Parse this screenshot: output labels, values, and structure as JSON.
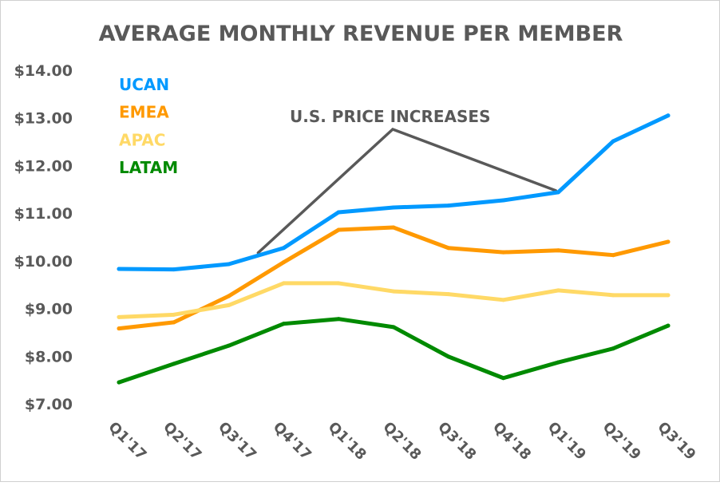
{
  "chart_data": {
    "type": "line",
    "title": "AVERAGE MONTHLY REVENUE PER MEMBER",
    "xlabel": "",
    "ylabel": "",
    "categories": [
      "Q1'17",
      "Q2'17",
      "Q3'17",
      "Q4'17",
      "Q1'18",
      "Q2'18",
      "Q3'18",
      "Q4'18",
      "Q1'19",
      "Q2'19",
      "Q3'19"
    ],
    "ylim": [
      7,
      14
    ],
    "yticks": [
      "$7.00",
      "$8.00",
      "$9.00",
      "$10.00",
      "$11.00",
      "$12.00",
      "$13.00",
      "$14.00"
    ],
    "grid": false,
    "legend_position": "top-left",
    "series": [
      {
        "name": "UCAN",
        "color": "#0099FF",
        "values": [
          9.83,
          9.82,
          9.93,
          10.27,
          11.02,
          11.12,
          11.16,
          11.27,
          11.44,
          12.51,
          13.05
        ]
      },
      {
        "name": "EMEA",
        "color": "#FF9900",
        "values": [
          8.58,
          8.71,
          9.26,
          9.97,
          10.65,
          10.7,
          10.27,
          10.18,
          10.22,
          10.12,
          10.4
        ]
      },
      {
        "name": "APAC",
        "color": "#FFD966",
        "values": [
          8.82,
          8.87,
          9.07,
          9.53,
          9.53,
          9.36,
          9.3,
          9.18,
          9.38,
          9.28,
          9.28
        ]
      },
      {
        "name": "LATAM",
        "color": "#008A00",
        "values": [
          7.45,
          7.84,
          8.22,
          8.68,
          8.78,
          8.61,
          7.99,
          7.54,
          7.87,
          8.16,
          8.64
        ]
      }
    ],
    "annotation": {
      "text": "U.S. PRICE INCREASES",
      "color": "#595959",
      "points_to": [
        "Q4'17",
        "Q1'19"
      ]
    },
    "text_color": "#595959"
  }
}
